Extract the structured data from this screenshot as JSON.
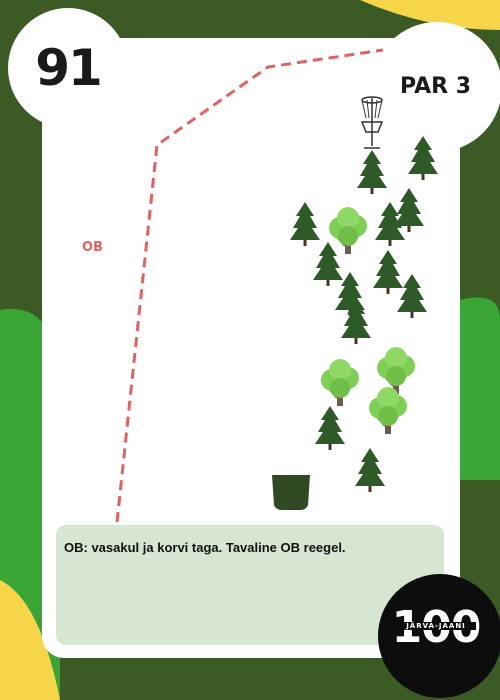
{
  "hole": {
    "number": "91",
    "par_label": "PAR 3"
  },
  "map": {
    "ob_label": "OB"
  },
  "note": {
    "text": "OB: vasakul ja korvi taga. Tavaline OB reegel."
  },
  "logo": {
    "digits": "100",
    "subtitle": "JÄRVA-JAANI"
  },
  "icons": [
    "disc-golf-basket-icon",
    "pine-tree-icon",
    "deciduous-tree-icon",
    "tee-pad-icon"
  ],
  "colors": {
    "background": "#3b5a24",
    "accent_green": "#3aa535",
    "yellow": "#f7d54a",
    "ob_line": "#e06262",
    "note_bg": "#d8e5d3",
    "tee": "#2f4a22"
  }
}
